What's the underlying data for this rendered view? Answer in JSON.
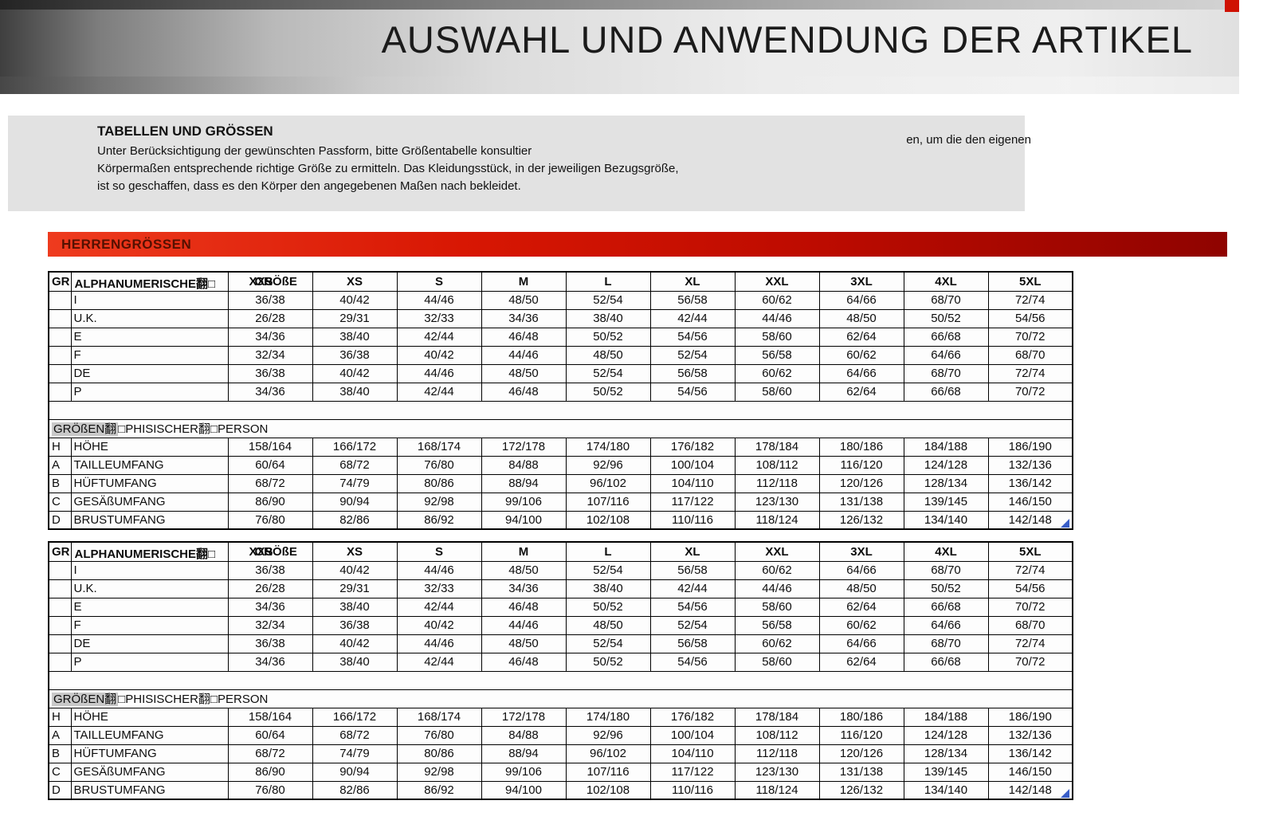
{
  "header": {
    "title": "AUSWAHL UND ANWENDUNG DER ARTIKEL"
  },
  "intro": {
    "heading": "TABELLEN UND GRÖSSEN",
    "line1": "Unter Berücksichtigung der gewünschten Passform, bitte Größentabelle konsultier",
    "line1_right": "en, um die den eigenen",
    "line2": "Körpermaßen entsprechende richtige Größe zu ermitteln. Das Kleidungsstück, in der jeweiligen Bezugsgröße,",
    "line3": "ist so geschaffen, dass es den Körper den angegebenen Maßen nach bekleidet."
  },
  "section_banner": "HERRENGRÖSSEN",
  "size_table": {
    "corner_label": "GR",
    "label_header": "ALPHANUMERISCHE翻□",
    "overlap_col": "XXS",
    "overlap_col2": "GRÖßE",
    "size_columns": [
      "XS",
      "S",
      "M",
      "L",
      "XL",
      "XXL",
      "3XL",
      "4XL",
      "5XL"
    ],
    "alpha_rows": [
      {
        "prefix": "",
        "label": "I",
        "values": [
          "36/38",
          "40/42",
          "44/46",
          "48/50",
          "52/54",
          "56/58",
          "60/62",
          "64/66",
          "68/70",
          "72/74"
        ]
      },
      {
        "prefix": "",
        "label": "U.K.",
        "values": [
          "26/28",
          "29/31",
          "32/33",
          "34/36",
          "38/40",
          "42/44",
          "44/46",
          "48/50",
          "50/52",
          "54/56"
        ]
      },
      {
        "prefix": "",
        "label": "E",
        "values": [
          "34/36",
          "38/40",
          "42/44",
          "46/48",
          "50/52",
          "54/56",
          "58/60",
          "62/64",
          "66/68",
          "70/72"
        ]
      },
      {
        "prefix": "",
        "label": "F",
        "values": [
          "32/34",
          "36/38",
          "40/42",
          "44/46",
          "48/50",
          "52/54",
          "56/58",
          "60/62",
          "64/66",
          "68/70"
        ]
      },
      {
        "prefix": "",
        "label": "DE",
        "values": [
          "36/38",
          "40/42",
          "44/46",
          "48/50",
          "52/54",
          "56/58",
          "60/62",
          "64/66",
          "68/70",
          "72/74"
        ]
      },
      {
        "prefix": "",
        "label": "P",
        "values": [
          "34/36",
          "38/40",
          "42/44",
          "46/48",
          "50/52",
          "54/56",
          "58/60",
          "62/64",
          "66/68",
          "70/72"
        ]
      }
    ],
    "physical_header": {
      "highlight": "GRÖßEN翻",
      "rest": "□PHISISCHER翻□PERSON"
    },
    "body_rows": [
      {
        "prefix": "H",
        "label": "HÖHE",
        "values": [
          "158/164",
          "166/172",
          "168/174",
          "172/178",
          "174/180",
          "176/182",
          "178/184",
          "180/186",
          "184/188",
          "186/190"
        ]
      },
      {
        "prefix": "A",
        "label": "TAILLEUMFANG",
        "values": [
          "60/64",
          "68/72",
          "76/80",
          "84/88",
          "92/96",
          "100/104",
          "108/112",
          "116/120",
          "124/128",
          "132/136"
        ]
      },
      {
        "prefix": "B",
        "label": "HÜFTUMFANG",
        "values": [
          "68/72",
          "74/79",
          "80/86",
          "88/94",
          "96/102",
          "104/110",
          "112/118",
          "120/126",
          "128/134",
          "136/142"
        ]
      },
      {
        "prefix": "C",
        "label": "GESÄßUMFANG",
        "values": [
          "86/90",
          "90/94",
          "92/98",
          "99/106",
          "107/116",
          "117/122",
          "123/130",
          "131/138",
          "139/145",
          "146/150"
        ]
      },
      {
        "prefix": "D",
        "label": "BRUSTUMFANG",
        "values": [
          "76/80",
          "82/86",
          "86/92",
          "94/100",
          "102/108",
          "110/116",
          "118/124",
          "126/132",
          "134/140",
          "142/148"
        ]
      }
    ]
  }
}
